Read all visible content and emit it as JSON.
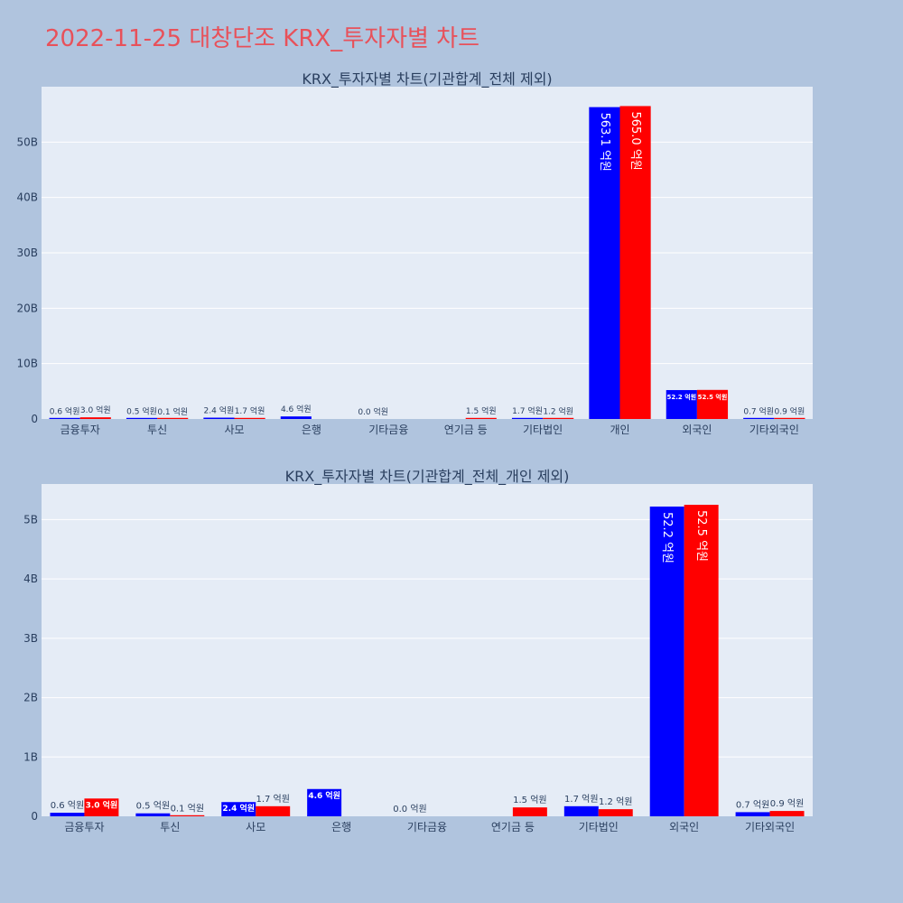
{
  "page_title": "2022-11-25 대창단조 KRX_투자자별 차트",
  "chart_data": [
    {
      "type": "bar",
      "title": "KRX_투자자별 차트(기관합계_전체 제외)",
      "categories": [
        "금융투자",
        "투신",
        "사모",
        "은행",
        "기타금융",
        "연기금 등",
        "기타법인",
        "개인",
        "외국인",
        "기타외국인"
      ],
      "series": [
        {
          "color": "#0000ff",
          "values": [
            0.06,
            0.05,
            0.24,
            0.46,
            0.0,
            null,
            0.17,
            56.31,
            5.22,
            0.07
          ],
          "labels": [
            "0.6 억원",
            "0.5 억원",
            "2.4 억원",
            "4.6 억원",
            "0.0 억원",
            "",
            "1.7 억원",
            "563.1 억원",
            "52.2 억원",
            "0.7 억원"
          ]
        },
        {
          "color": "#ff0000",
          "values": [
            0.3,
            0.01,
            0.17,
            null,
            null,
            0.15,
            0.12,
            56.5,
            5.25,
            0.09
          ],
          "labels": [
            "3.0 억원",
            "0.1 억원",
            "1.7 억원",
            "",
            "",
            "1.5 억원",
            "1.2 억원",
            "565.0 억원",
            "52.5 억원",
            "0.9 억원"
          ]
        }
      ],
      "ylim": [
        0,
        60
      ],
      "yticks": [
        0,
        10,
        20,
        30,
        40,
        50
      ],
      "ytick_labels": [
        "0",
        "10B",
        "20B",
        "30B",
        "40B",
        "50B"
      ],
      "grid": true
    },
    {
      "type": "bar",
      "title": "KRX_투자자별 차트(기관합계_전체_개인 제외)",
      "categories": [
        "금융투자",
        "투신",
        "사모",
        "은행",
        "기타금융",
        "연기금 등",
        "기타법인",
        "외국인",
        "기타외국인"
      ],
      "series": [
        {
          "color": "#0000ff",
          "values": [
            0.06,
            0.05,
            0.24,
            0.46,
            0.0,
            null,
            0.17,
            5.22,
            0.07
          ],
          "labels": [
            "0.6 억원",
            "0.5 억원",
            "2.4 억원",
            "4.6 억원",
            "0.0 억원",
            "",
            "1.7 억원",
            "52.2 억원",
            "0.7 억원"
          ]
        },
        {
          "color": "#ff0000",
          "values": [
            0.3,
            0.01,
            0.17,
            null,
            null,
            0.15,
            0.12,
            5.25,
            0.09
          ],
          "labels": [
            "3.0 억원",
            "0.1 억원",
            "1.7 억원",
            "",
            "",
            "1.5 억원",
            "1.2 억원",
            "52.5 억원",
            "0.9 억원"
          ]
        }
      ],
      "ylim": [
        0,
        5.6
      ],
      "yticks": [
        0,
        1,
        2,
        3,
        4,
        5
      ],
      "ytick_labels": [
        "0",
        "1B",
        "2B",
        "3B",
        "4B",
        "5B"
      ],
      "grid": true
    }
  ]
}
